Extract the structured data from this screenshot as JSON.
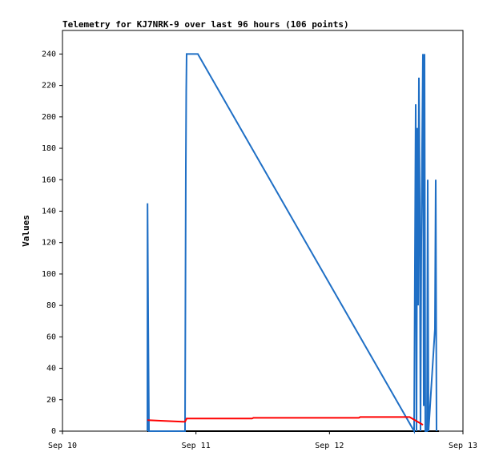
{
  "chart_data": {
    "type": "line",
    "title": "Telemetry for KJ7NRK-9 over last 96 hours (106 points)",
    "y_label": "Values",
    "xlim": [
      0,
      3
    ],
    "xticks": [
      {
        "value": 0,
        "label": "Sep 10"
      },
      {
        "value": 1,
        "label": "Sep 11"
      },
      {
        "value": 2,
        "label": "Sep 12"
      },
      {
        "value": 3,
        "label": "Sep 13"
      }
    ],
    "ylim": [
      0,
      255
    ],
    "yticks": [
      0,
      20,
      40,
      60,
      80,
      100,
      120,
      140,
      160,
      180,
      200,
      220,
      240
    ],
    "grid": false,
    "series": [
      {
        "color": "#000000",
        "x": [
          0.636,
          2.82
        ],
        "values": [
          0,
          0
        ]
      },
      {
        "color": "#1f6fc5",
        "x": [
          0.636,
          0.637,
          0.642,
          0.648,
          0.918,
          0.924,
          0.927,
          0.93,
          1.014,
          2.634,
          2.646,
          2.652,
          2.658,
          2.664,
          2.67,
          2.676,
          2.682,
          2.688,
          2.7,
          2.706,
          2.712,
          2.718,
          2.73,
          2.736,
          2.742,
          2.79,
          2.796,
          2.802
        ],
        "values": [
          0,
          145,
          73,
          0,
          0,
          168,
          216,
          240,
          240,
          0,
          208,
          0,
          193,
          80,
          225,
          145,
          0,
          120,
          240,
          16,
          240,
          0,
          0,
          160,
          0,
          65,
          160,
          0
        ]
      },
      {
        "color": "#ff0000",
        "x": [
          0.636,
          0.9,
          0.918,
          0.93,
          1.42,
          1.43,
          2.22,
          2.23,
          2.6,
          2.7
        ],
        "values": [
          7,
          6,
          6,
          8,
          8,
          8.5,
          8.5,
          9,
          9,
          4
        ]
      }
    ]
  }
}
